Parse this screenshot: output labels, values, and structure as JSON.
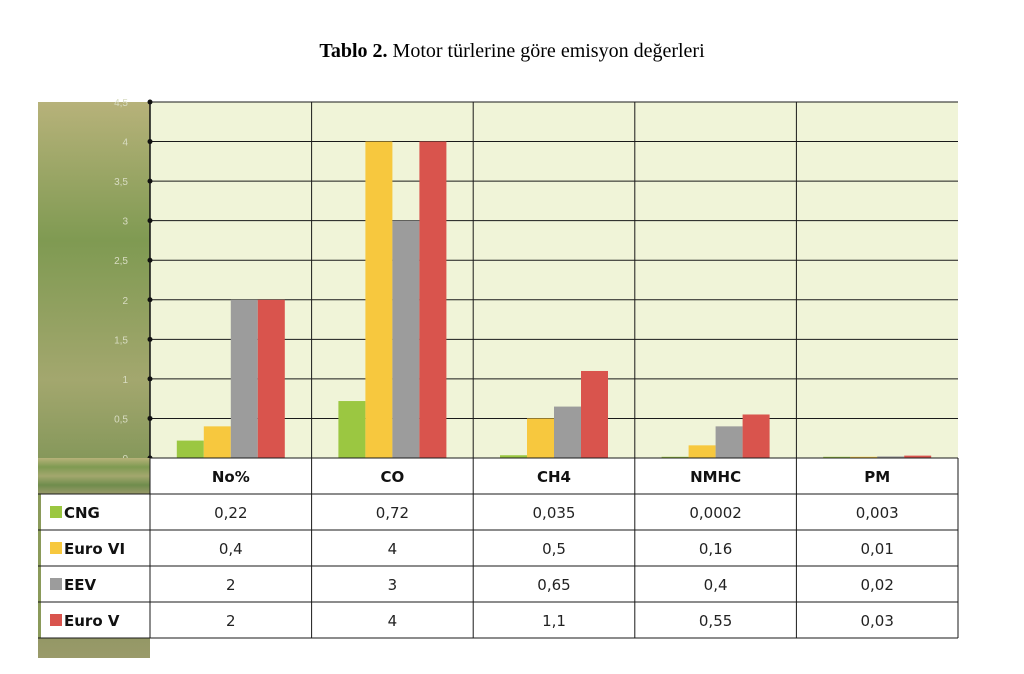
{
  "caption": {
    "prefix": "Tablo 2.",
    "text": "Motor türlerine göre emisyon değerleri"
  },
  "colors": {
    "CNG": "#9bc741",
    "Euro VI": "#f7c83e",
    "EEV": "#9c9c9c",
    "Euro V": "#d9544d",
    "plot_bg": "#f0f4d8",
    "left_strip": "#8a9a5a"
  },
  "chart_data": {
    "type": "bar",
    "categories": [
      "No%",
      "CO",
      "CH4",
      "NMHC",
      "PM"
    ],
    "series": [
      {
        "name": "CNG",
        "values": [
          0.22,
          0.72,
          0.035,
          0.0002,
          0.003
        ],
        "labels": [
          "0,22",
          "0,72",
          "0,035",
          "0,0002",
          "0,003"
        ]
      },
      {
        "name": "Euro VI",
        "values": [
          0.4,
          4,
          0.5,
          0.16,
          0.01
        ],
        "labels": [
          "0,4",
          "4",
          "0,5",
          "0,16",
          "0,01"
        ]
      },
      {
        "name": "EEV",
        "values": [
          2,
          3,
          0.65,
          0.4,
          0.02
        ],
        "labels": [
          "2",
          "3",
          "0,65",
          "0,4",
          "0,02"
        ]
      },
      {
        "name": "Euro V",
        "values": [
          2,
          4,
          1.1,
          0.55,
          0.03
        ],
        "labels": [
          "2",
          "4",
          "1,1",
          "0,55",
          "0,03"
        ]
      }
    ],
    "yticks": [
      "0",
      "0,5",
      "1",
      "1,5",
      "2",
      "2,5",
      "3",
      "3,5",
      "4",
      "4,5"
    ],
    "ylim": [
      0,
      4.5
    ],
    "grid": true,
    "legend": "table-below"
  }
}
